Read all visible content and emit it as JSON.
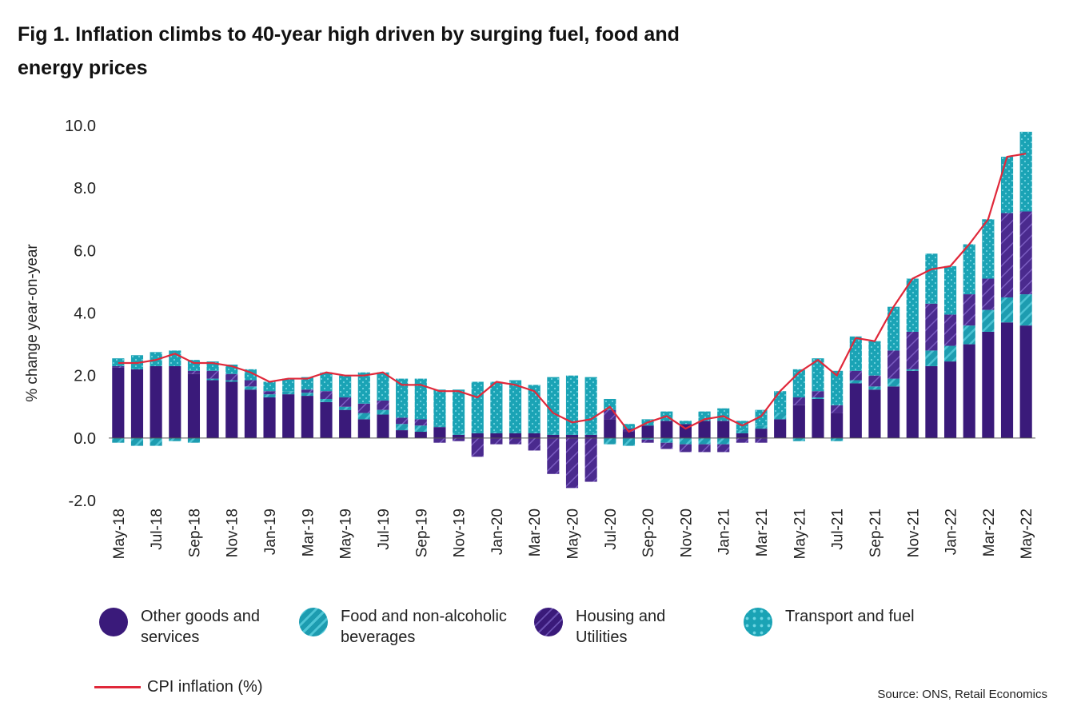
{
  "title": "Fig 1. Inflation climbs to 40-year high driven by surging fuel, food and energy prices",
  "source": "Source: ONS, Retail Economics",
  "colors": {
    "other": "#3a1a7a",
    "food": "#1d9cb0",
    "housing": "#4a2a8e",
    "transport": "#1aa3b5",
    "cpi": "#e0283a",
    "axis": "#333333"
  },
  "legend": {
    "other": "Other goods and services",
    "food": "Food and non-alcoholic beverages",
    "housing": "Housing and Utilities",
    "transport": "Transport and fuel",
    "cpi": "CPI inflation (%)"
  },
  "chart_data": {
    "type": "bar",
    "stacked": true,
    "title": "Fig 1. Inflation climbs to 40-year high driven by surging fuel, food and energy prices",
    "xlabel": "",
    "ylabel": "% change year-on-year",
    "ylim": [
      -2.0,
      10.0
    ],
    "yticks": [
      "-2.0",
      "0.0",
      "2.0",
      "4.0",
      "6.0",
      "8.0",
      "10.0"
    ],
    "ytick_values": [
      -2,
      0,
      2,
      4,
      6,
      8,
      10
    ],
    "categories": [
      "May-18",
      "Jun-18",
      "Jul-18",
      "Aug-18",
      "Sep-18",
      "Oct-18",
      "Nov-18",
      "Dec-18",
      "Jan-19",
      "Feb-19",
      "Mar-19",
      "Apr-19",
      "May-19",
      "Jun-19",
      "Jul-19",
      "Aug-19",
      "Sep-19",
      "Oct-19",
      "Nov-19",
      "Dec-19",
      "Jan-20",
      "Feb-20",
      "Mar-20",
      "Apr-20",
      "May-20",
      "Jun-20",
      "Jul-20",
      "Aug-20",
      "Sep-20",
      "Oct-20",
      "Nov-20",
      "Dec-20",
      "Jan-21",
      "Feb-21",
      "Mar-21",
      "Apr-21",
      "May-21",
      "Jun-21",
      "Jul-21",
      "Aug-21",
      "Sep-21",
      "Oct-21",
      "Nov-21",
      "Dec-21",
      "Jan-22",
      "Feb-22",
      "Mar-22",
      "Apr-22",
      "May-22"
    ],
    "xtick_labels": [
      "May-18",
      "Jul-18",
      "Sep-18",
      "Nov-18",
      "Jan-19",
      "Mar-19",
      "May-19",
      "Jul-19",
      "Sep-19",
      "Nov-19",
      "Jan-20",
      "Mar-20",
      "May-20",
      "Jul-20",
      "Sep-20",
      "Nov-20",
      "Jan-21",
      "Mar-21",
      "May-21",
      "Jul-21",
      "Sep-21",
      "Nov-21",
      "Jan-22",
      "Mar-22",
      "May-22"
    ],
    "series": [
      {
        "name": "Other goods and services",
        "key": "other",
        "values": [
          2.25,
          2.2,
          2.3,
          2.3,
          2.05,
          1.85,
          1.8,
          1.55,
          1.3,
          1.4,
          1.35,
          1.15,
          0.9,
          0.6,
          0.75,
          0.25,
          0.2,
          0.35,
          0.1,
          0.15,
          0.15,
          0.15,
          0.15,
          0.1,
          0.1,
          0.1,
          0.6,
          0.2,
          0.4,
          0.55,
          0.45,
          0.55,
          0.55,
          0.15,
          0.3,
          0.6,
          1.05,
          1.25,
          0.8,
          1.75,
          1.55,
          1.65,
          2.15,
          2.3,
          2.45,
          3.0,
          3.4,
          3.7,
          3.6
        ]
      },
      {
        "name": "Food and non-alcoholic beverages",
        "key": "food",
        "values": [
          -0.15,
          -0.25,
          -0.25,
          -0.1,
          -0.15,
          0.05,
          0.05,
          0.1,
          0.1,
          0.1,
          0.1,
          0.1,
          0.1,
          0.2,
          0.15,
          0.2,
          0.2,
          0.05,
          0.05,
          0.05,
          0.05,
          0.05,
          0.05,
          0.05,
          0.05,
          0.05,
          -0.2,
          -0.25,
          -0.05,
          -0.15,
          -0.2,
          -0.2,
          -0.2,
          0.1,
          0.1,
          0.2,
          -0.1,
          0.05,
          -0.1,
          0.1,
          0.1,
          0.25,
          0.05,
          0.5,
          0.5,
          0.6,
          0.7,
          0.8,
          1.0
        ]
      },
      {
        "name": "Housing and Utilities",
        "key": "housing",
        "values": [
          0.05,
          0.0,
          0.0,
          0.0,
          0.1,
          0.25,
          0.2,
          0.2,
          0.1,
          0.0,
          0.1,
          0.25,
          0.3,
          0.3,
          0.3,
          0.2,
          0.2,
          -0.15,
          -0.1,
          -0.6,
          -0.2,
          -0.2,
          -0.4,
          -1.15,
          -1.6,
          -1.4,
          0.3,
          0.1,
          -0.1,
          -0.2,
          -0.25,
          -0.25,
          -0.25,
          -0.15,
          -0.15,
          0.0,
          0.25,
          0.2,
          0.25,
          0.3,
          0.35,
          0.9,
          1.2,
          1.5,
          1.0,
          1.0,
          1.0,
          2.7,
          2.65
        ]
      },
      {
        "name": "Transport and fuel",
        "key": "transport",
        "values": [
          0.25,
          0.45,
          0.45,
          0.5,
          0.35,
          0.3,
          0.3,
          0.35,
          0.3,
          0.4,
          0.4,
          0.6,
          0.7,
          1.0,
          0.9,
          1.25,
          1.3,
          1.15,
          1.4,
          1.6,
          1.6,
          1.65,
          1.5,
          1.8,
          1.85,
          1.8,
          0.35,
          0.15,
          0.2,
          0.3,
          0.1,
          0.3,
          0.4,
          0.3,
          0.5,
          0.7,
          0.9,
          1.05,
          1.1,
          1.1,
          1.1,
          1.4,
          1.7,
          1.6,
          1.55,
          1.6,
          1.9,
          1.8,
          2.55
        ]
      }
    ],
    "cpi": {
      "name": "CPI inflation (%)",
      "values": [
        2.4,
        2.4,
        2.5,
        2.7,
        2.4,
        2.4,
        2.3,
        2.1,
        1.8,
        1.9,
        1.9,
        2.1,
        2.0,
        2.0,
        2.1,
        1.7,
        1.7,
        1.5,
        1.5,
        1.3,
        1.8,
        1.7,
        1.5,
        0.8,
        0.5,
        0.6,
        1.0,
        0.2,
        0.5,
        0.7,
        0.3,
        0.6,
        0.7,
        0.4,
        0.7,
        1.5,
        2.1,
        2.5,
        2.0,
        3.2,
        3.1,
        4.2,
        5.1,
        5.4,
        5.5,
        6.2,
        7.0,
        9.0,
        9.1
      ]
    }
  }
}
